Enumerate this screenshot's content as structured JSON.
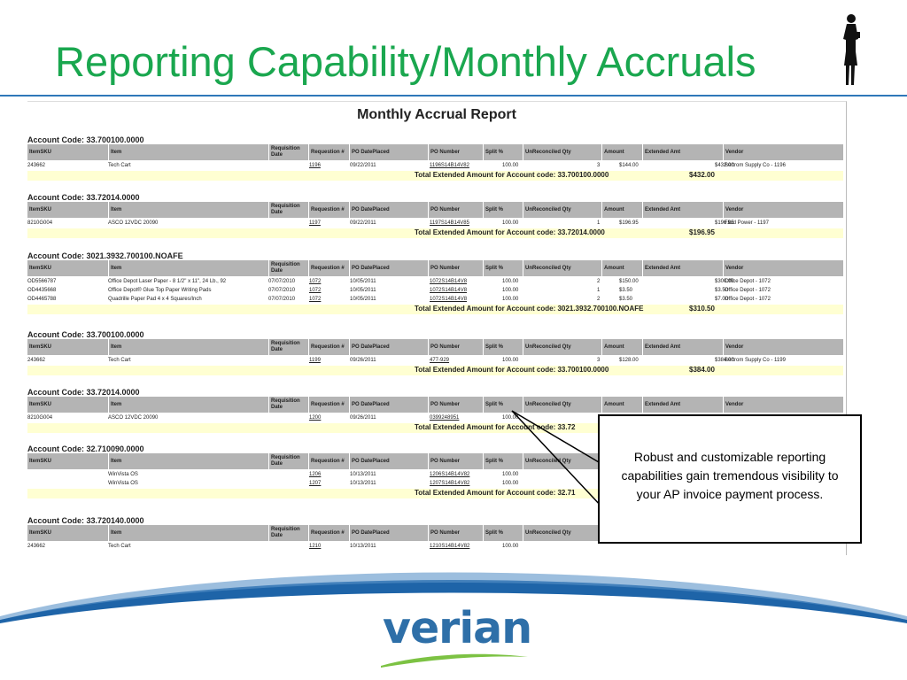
{
  "slide": {
    "title": "Reporting Capability/Monthly Accruals",
    "figure_icon": "businesswoman-silhouette-icon"
  },
  "report": {
    "title": "Monthly Accrual Report",
    "columns": [
      "ItemSKU",
      "Item",
      "Requisition Date",
      "Requestion #",
      "PO DatePlaced",
      "PO Number",
      "Split %",
      "UnReconciled Qty",
      "Amount",
      "Extended Amt",
      "Vendor"
    ],
    "groups": [
      {
        "account": "Account Code: 33.700100.0000",
        "rows": [
          {
            "sku": "243662",
            "item": "Tech Cart",
            "req_date": "",
            "req_no": "1196",
            "po_date": "09/22/2011",
            "po_number": "1196S14B14V82",
            "split": "100.00",
            "qty": "3",
            "amount": "$144.00",
            "extended": "$432.00",
            "vendor": "Bertrom Supply Co - 1196"
          }
        ],
        "total_label": "Total Extended Amount for Account code: 33.700100.0000",
        "total_value": "$432.00"
      },
      {
        "account": "Account Code: 33.72014.0000",
        "rows": [
          {
            "sku": "8210G004",
            "item": "ASCO 12VDC 20090",
            "req_date": "",
            "req_no": "1197",
            "po_date": "09/22/2011",
            "po_number": "1197S14B14V85",
            "split": "100.00",
            "qty": "1",
            "amount": "$196.95",
            "extended": "$196.95",
            "vendor": "Fluid Power - 1197"
          }
        ],
        "total_label": "Total Extended Amount for Account code: 33.72014.0000",
        "total_value": "$196.95"
      },
      {
        "account": "Account Code: 3021.3932.700100.NOAFE",
        "rows": [
          {
            "sku": "OD5566787",
            "item": "Office Depot Laser Paper - 8 1/2\" x 11\", 24 Lb., 92",
            "req_date": "07/07/2010",
            "req_no": "1072",
            "po_date": "10/05/2011",
            "po_number": "1072S14B14V8",
            "split": "100.00",
            "qty": "2",
            "amount": "$150.00",
            "extended": "$300.00",
            "vendor": "Office Depot - 1072"
          },
          {
            "sku": "OD4435668",
            "item": "Office Depot® Glue Top Paper Writing Pads",
            "req_date": "07/07/2010",
            "req_no": "1072",
            "po_date": "10/05/2011",
            "po_number": "1072S14B14V8",
            "split": "100.00",
            "qty": "1",
            "amount": "$3.50",
            "extended": "$3.50",
            "vendor": "Office Depot - 1072"
          },
          {
            "sku": "OD4465788",
            "item": "Quadrille Paper Pad 4 x 4 Squares/Inch",
            "req_date": "07/07/2010",
            "req_no": "1072",
            "po_date": "10/05/2011",
            "po_number": "1072S14B14V8",
            "split": "100.00",
            "qty": "2",
            "amount": "$3.50",
            "extended": "$7.00",
            "vendor": "Office Depot - 1072"
          }
        ],
        "total_label": "Total Extended Amount for Account code: 3021.3932.700100.NOAFE",
        "total_value": "$310.50"
      },
      {
        "account": "Account Code: 33.700100.0000",
        "rows": [
          {
            "sku": "243662",
            "item": "Tech Cart",
            "req_date": "",
            "req_no": "1199",
            "po_date": "09/26/2011",
            "po_number": "477-929",
            "split": "100.00",
            "qty": "3",
            "amount": "$128.00",
            "extended": "$384.00",
            "vendor": "Bertrom Supply Co - 1199"
          }
        ],
        "total_label": "Total Extended Amount for Account code: 33.700100.0000",
        "total_value": "$384.00"
      },
      {
        "account": "Account Code: 33.72014.0000",
        "rows": [
          {
            "sku": "8210G004",
            "item": "ASCO 12VDC 20090",
            "req_date": "",
            "req_no": "1200",
            "po_date": "09/26/2011",
            "po_number": "0399248951",
            "split": "100.00",
            "qty": "",
            "amount": "",
            "extended": "",
            "vendor": ""
          }
        ],
        "total_label": "Total Extended Amount for Account code: 33.72",
        "total_value": ""
      },
      {
        "account": "Account Code: 32.710090.0000",
        "rows": [
          {
            "sku": "",
            "item": "WinVista OS",
            "req_date": "",
            "req_no": "1206",
            "po_date": "10/13/2011",
            "po_number": "1206S14B14V82",
            "split": "100.00",
            "qty": "",
            "amount": "",
            "extended": "",
            "vendor": ""
          },
          {
            "sku": "",
            "item": "WinVista OS",
            "req_date": "",
            "req_no": "1207",
            "po_date": "10/13/2011",
            "po_number": "1207S14B14V82",
            "split": "100.00",
            "qty": "",
            "amount": "",
            "extended": "",
            "vendor": ""
          }
        ],
        "total_label": "Total Extended Amount for Account code: 32.71",
        "total_value": ""
      },
      {
        "account": "Account Code: 33.720140.0000",
        "rows": [
          {
            "sku": "243662",
            "item": "Tech Cart",
            "req_date": "",
            "req_no": "1210",
            "po_date": "10/13/2011",
            "po_number": "1210S14B14V82",
            "split": "100.00",
            "qty": "",
            "amount": "",
            "extended": "",
            "vendor": ""
          }
        ],
        "total_label": "",
        "total_value": ""
      }
    ]
  },
  "callout": {
    "text": "Robust and customizable reporting capabilities gain tremendous visibility to your AP invoice payment process."
  },
  "footer": {
    "logo_text": "verian",
    "colors": {
      "title": "#1aa74f",
      "rule": "#2f78b9",
      "swoosh_blue": "#1e64a8",
      "logo_blue": "#2e6fa8",
      "logo_green": "#7cc243"
    }
  }
}
